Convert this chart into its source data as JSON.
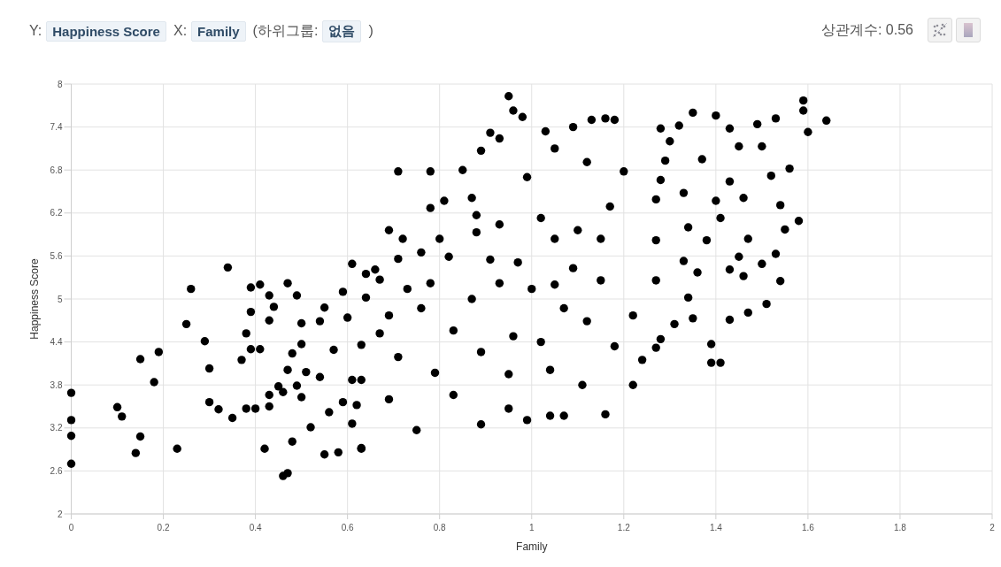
{
  "chart_data": {
    "type": "scatter",
    "annotations": [
      "Y:",
      "Happiness Score",
      "X:",
      "Family",
      "(하위그룹:",
      "없음",
      ")",
      "상관계수: 0.56"
    ],
    "xlabel": "Family",
    "ylabel": "Happiness Score",
    "x": [
      0,
      0,
      0,
      0,
      0.1,
      0.11,
      0.14,
      0.15,
      0.15,
      0.18,
      0.19,
      0.23,
      0.25,
      0.26,
      0.29,
      0.3,
      0.3,
      0.32,
      0.34,
      0.35,
      0.37,
      0.38,
      0.4,
      0.38,
      0.39,
      0.39,
      0.39,
      0.41,
      0.41,
      0.42,
      0.43,
      0.44,
      0.43,
      0.43,
      0.43,
      0.45,
      0.46,
      0.46,
      0.47,
      0.47,
      0.48,
      0.47,
      0.48,
      0.49,
      0.49,
      0.5,
      0.5,
      0.5,
      0.51,
      0.52,
      0.54,
      0.54,
      0.55,
      0.55,
      0.58,
      0.56,
      0.57,
      0.59,
      0.61,
      0.61,
      0.63,
      0.6,
      0.59,
      0.62,
      0.64,
      0.66,
      0.63,
      0.63,
      0.95,
      0.96,
      0.98,
      0.93,
      0.91,
      0.89,
      1.03,
      1.09,
      1.13,
      1.16,
      1.18,
      1.05,
      0.71,
      0.78,
      0.85,
      0.99,
      1.12,
      1.2,
      0.78,
      0.69,
      0.72,
      0.71,
      0.76,
      0.81,
      0.87,
      0.88,
      0.93,
      0.8,
      0.88,
      0.82,
      0.91,
      0.97,
      1.02,
      1.05,
      1.1,
      1.15,
      1.17,
      1.09,
      1.15,
      1.05,
      1,
      0.93,
      0.87,
      0.78,
      0.73,
      0.69,
      0.64,
      0.67,
      0.76,
      0.83,
      0.89,
      0.96,
      1.02,
      1.07,
      1.12,
      1.18,
      1.22,
      1.27,
      1.24,
      1.22,
      1.16,
      1.11,
      1.07,
      1.04,
      0.99,
      1.04,
      0.95,
      0.95,
      0.89,
      0.83,
      0.79,
      0.75,
      0.71,
      0.69,
      0.61,
      0.63,
      0.67,
      1.59,
      1.59,
      1.64,
      1.6,
      1.53,
      1.49,
      1.43,
      1.4,
      1.35,
      1.32,
      1.28,
      1.3,
      1.45,
      1.5,
      1.56,
      1.37,
      1.29,
      1.28,
      1.52,
      1.43,
      1.33,
      1.4,
      1.46,
      1.54,
      1.27,
      1.58,
      1.55,
      1.34,
      1.41,
      1.47,
      1.38,
      1.27,
      1.53,
      1.45,
      1.33,
      1.43,
      1.5,
      1.27,
      1.36,
      1.34,
      1.46,
      1.54,
      1.51,
      1.47,
      1.35,
      1.31,
      1.43,
      1.28,
      1.39,
      1.39,
      1.41
    ],
    "values": [
      3.69,
      3.31,
      3.09,
      2.7,
      3.49,
      3.36,
      2.85,
      4.16,
      3.08,
      3.84,
      4.26,
      2.91,
      4.65,
      5.14,
      4.41,
      4.03,
      3.56,
      3.46,
      5.44,
      3.34,
      4.15,
      3.47,
      3.47,
      4.52,
      5.16,
      4.82,
      4.3,
      4.3,
      5.2,
      2.91,
      5.05,
      4.89,
      4.7,
      3.66,
      3.5,
      3.78,
      3.7,
      2.53,
      2.57,
      5.22,
      3.01,
      4.01,
      4.24,
      5.05,
      3.79,
      4.66,
      4.37,
      3.63,
      3.98,
      3.21,
      3.91,
      4.69,
      4.88,
      2.83,
      2.86,
      3.42,
      4.29,
      5.1,
      5.49,
      3.26,
      2.91,
      4.74,
      3.56,
      3.52,
      5.35,
      5.41,
      4.36,
      3.87,
      7.83,
      7.63,
      7.54,
      7.24,
      7.32,
      7.07,
      7.34,
      7.4,
      7.5,
      7.52,
      7.5,
      7.1,
      6.78,
      6.78,
      6.8,
      6.7,
      6.91,
      6.78,
      6.27,
      5.96,
      5.84,
      5.56,
      5.65,
      6.37,
      6.41,
      6.17,
      6.04,
      5.84,
      5.93,
      5.59,
      5.55,
      5.51,
      6.13,
      5.84,
      5.96,
      5.84,
      6.29,
      5.43,
      5.26,
      5.2,
      5.14,
      5.22,
      5,
      5.22,
      5.14,
      4.77,
      5.02,
      5.27,
      4.87,
      4.56,
      4.26,
      4.48,
      4.4,
      4.87,
      4.69,
      4.34,
      4.77,
      4.32,
      4.15,
      3.8,
      3.39,
      3.8,
      3.37,
      3.37,
      3.31,
      4.01,
      3.95,
      3.47,
      3.25,
      3.66,
      3.97,
      3.17,
      4.19,
      3.6,
      3.87,
      2.92,
      4.52,
      7.77,
      7.63,
      7.49,
      7.33,
      7.52,
      7.44,
      7.38,
      7.56,
      7.6,
      7.42,
      7.38,
      7.2,
      7.13,
      7.13,
      6.82,
      6.95,
      6.93,
      6.66,
      6.72,
      6.64,
      6.48,
      6.37,
      6.41,
      6.31,
      6.39,
      6.09,
      5.97,
      6,
      6.13,
      5.84,
      5.82,
      5.82,
      5.63,
      5.59,
      5.53,
      5.41,
      5.49,
      5.26,
      5.37,
      5.02,
      5.32,
      5.25,
      4.93,
      4.81,
      4.73,
      4.65,
      4.71,
      4.44,
      4.37,
      4.11,
      4.11
    ],
    "color": "#000000",
    "marker": "circle",
    "xlim": [
      0,
      2
    ],
    "xticks": [
      0,
      0.2,
      0.4,
      0.6,
      0.8,
      1,
      1.2,
      1.4,
      1.6,
      1.8,
      2
    ],
    "ylim": [
      2,
      8
    ],
    "yticks": [
      2,
      2.6,
      3.2,
      3.8,
      4.4,
      5,
      5.6,
      6.2,
      6.8,
      7.4,
      8
    ],
    "grid": true
  }
}
